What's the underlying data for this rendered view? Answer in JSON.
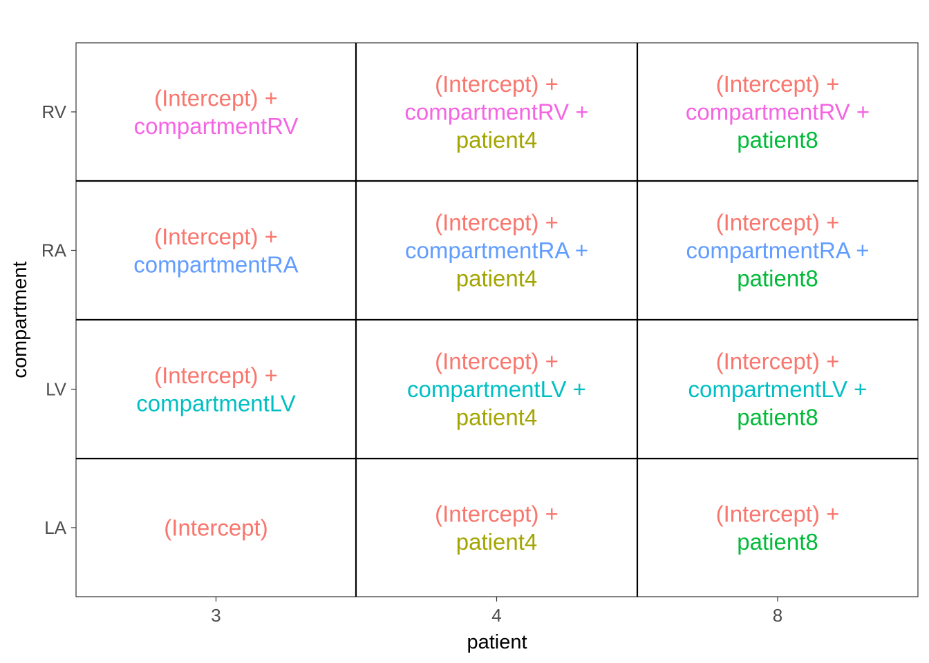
{
  "colors": {
    "intercept": "#F8766D",
    "patient4": "#A3A500",
    "patient8": "#00BA38",
    "compartmentLV": "#00BFC4",
    "compartmentRA": "#619CFF",
    "compartmentRV": "#F564E3",
    "tick_text": "#4d4d4d",
    "grid_line": "#000000"
  },
  "axes": {
    "x_title": "patient",
    "y_title": "compartment",
    "x_ticks": [
      "3",
      "4",
      "8"
    ],
    "y_ticks": [
      "LA",
      "LV",
      "RA",
      "RV"
    ]
  },
  "grid": {
    "columns": [
      "3",
      "4",
      "8"
    ],
    "rows": [
      "RV",
      "RA",
      "LV",
      "LA"
    ],
    "cells": [
      [
        [
          {
            "text": "(Intercept) +",
            "color": "intercept"
          },
          {
            "text": "compartmentRV",
            "color": "compartmentRV"
          }
        ],
        [
          {
            "text": "(Intercept) +",
            "color": "intercept"
          },
          {
            "text": "compartmentRV +",
            "color": "compartmentRV"
          },
          {
            "text": "patient4",
            "color": "patient4"
          }
        ],
        [
          {
            "text": "(Intercept) +",
            "color": "intercept"
          },
          {
            "text": "compartmentRV +",
            "color": "compartmentRV"
          },
          {
            "text": "patient8",
            "color": "patient8"
          }
        ]
      ],
      [
        [
          {
            "text": "(Intercept) +",
            "color": "intercept"
          },
          {
            "text": "compartmentRA",
            "color": "compartmentRA"
          }
        ],
        [
          {
            "text": "(Intercept) +",
            "color": "intercept"
          },
          {
            "text": "compartmentRA +",
            "color": "compartmentRA"
          },
          {
            "text": "patient4",
            "color": "patient4"
          }
        ],
        [
          {
            "text": "(Intercept) +",
            "color": "intercept"
          },
          {
            "text": "compartmentRA +",
            "color": "compartmentRA"
          },
          {
            "text": "patient8",
            "color": "patient8"
          }
        ]
      ],
      [
        [
          {
            "text": "(Intercept) +",
            "color": "intercept"
          },
          {
            "text": "compartmentLV",
            "color": "compartmentLV"
          }
        ],
        [
          {
            "text": "(Intercept) +",
            "color": "intercept"
          },
          {
            "text": "compartmentLV +",
            "color": "compartmentLV"
          },
          {
            "text": "patient4",
            "color": "patient4"
          }
        ],
        [
          {
            "text": "(Intercept) +",
            "color": "intercept"
          },
          {
            "text": "compartmentLV +",
            "color": "compartmentLV"
          },
          {
            "text": "patient8",
            "color": "patient8"
          }
        ]
      ],
      [
        [
          {
            "text": "(Intercept)",
            "color": "intercept"
          }
        ],
        [
          {
            "text": "(Intercept) +",
            "color": "intercept"
          },
          {
            "text": "patient4",
            "color": "patient4"
          }
        ],
        [
          {
            "text": "(Intercept) +",
            "color": "intercept"
          },
          {
            "text": "patient8",
            "color": "patient8"
          }
        ]
      ]
    ]
  }
}
